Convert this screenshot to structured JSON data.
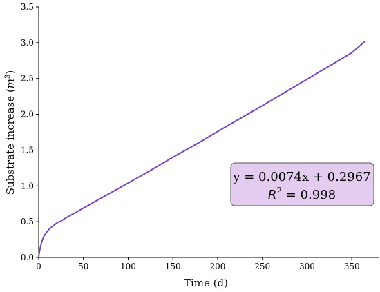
{
  "chart_data": {
    "type": "line",
    "title": "",
    "xlabel": "Time (d)",
    "ylabel_prefix": "Substrate increase (",
    "ylabel_unit": "m",
    "ylabel_exp": "3",
    "ylabel_suffix": ")",
    "xlim": [
      0,
      380
    ],
    "ylim": [
      0,
      3.5
    ],
    "xticks": [
      0,
      50,
      100,
      150,
      200,
      250,
      300,
      350
    ],
    "yticks": [
      0.0,
      0.5,
      1.0,
      1.5,
      2.0,
      2.5,
      3.0,
      3.5
    ],
    "grid": false,
    "series": [
      {
        "color": "#7b42bf",
        "x": [
          0,
          0.5,
          1,
          2,
          3,
          4,
          5,
          6,
          8,
          10,
          12,
          15,
          18,
          20,
          25,
          30,
          40,
          50,
          60,
          80,
          100,
          120,
          150,
          180,
          200,
          250,
          300,
          350,
          365
        ],
        "y": [
          0.0,
          0.05,
          0.09,
          0.15,
          0.2,
          0.24,
          0.27,
          0.3,
          0.34,
          0.37,
          0.4,
          0.43,
          0.46,
          0.48,
          0.51,
          0.55,
          0.62,
          0.69,
          0.76,
          0.9,
          1.04,
          1.18,
          1.4,
          1.61,
          1.76,
          2.12,
          2.49,
          2.86,
          3.02
        ]
      }
    ],
    "annotation": {
      "equation": "y = 0.0074x + 0.2967",
      "r2_symbol": "R",
      "r2_exp": "2",
      "r2_value": " = 0.998",
      "fill": "#e3ccf0",
      "border": "#555555"
    }
  }
}
